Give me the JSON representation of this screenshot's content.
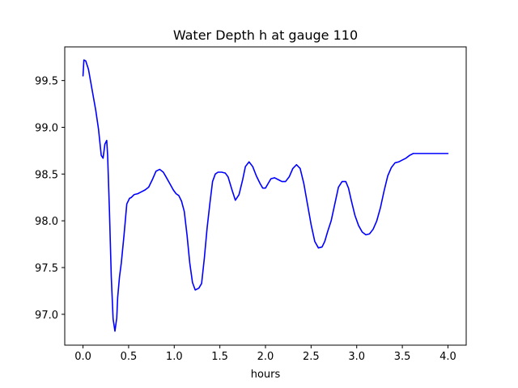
{
  "chart_data": {
    "type": "line",
    "title": "Water Depth h at gauge 110",
    "xlabel": "hours",
    "ylabel": "",
    "xlim": [
      -0.2,
      4.2
    ],
    "ylim": [
      96.67,
      99.86
    ],
    "xticks": [
      0.0,
      0.5,
      1.0,
      1.5,
      2.0,
      2.5,
      3.0,
      3.5,
      4.0
    ],
    "xtick_labels": [
      "0.0",
      "0.5",
      "1.0",
      "1.5",
      "2.0",
      "2.5",
      "3.0",
      "3.5",
      "4.0"
    ],
    "yticks": [
      97.0,
      97.5,
      98.0,
      98.5,
      99.0,
      99.5
    ],
    "ytick_labels": [
      "97.0",
      "97.5",
      "98.0",
      "98.5",
      "99.0",
      "99.5"
    ],
    "grid": false,
    "colors": {
      "line": "#0000ff",
      "axes": "#000000",
      "background": "#ffffff"
    },
    "series": [
      {
        "x": [
          0.0,
          0.01,
          0.03,
          0.06,
          0.1,
          0.14,
          0.17,
          0.2,
          0.22,
          0.24,
          0.26,
          0.27,
          0.29,
          0.31,
          0.33,
          0.35,
          0.37,
          0.38,
          0.4,
          0.42,
          0.45,
          0.48,
          0.51,
          0.53,
          0.56,
          0.6,
          0.64,
          0.68,
          0.72,
          0.76,
          0.8,
          0.84,
          0.88,
          0.91,
          0.95,
          0.99,
          1.02,
          1.05,
          1.08,
          1.11,
          1.14,
          1.17,
          1.2,
          1.23,
          1.27,
          1.3,
          1.33,
          1.36,
          1.39,
          1.42,
          1.45,
          1.48,
          1.52,
          1.56,
          1.59,
          1.63,
          1.67,
          1.71,
          1.75,
          1.78,
          1.82,
          1.86,
          1.9,
          1.94,
          1.97,
          2.0,
          2.03,
          2.06,
          2.1,
          2.14,
          2.18,
          2.22,
          2.26,
          2.3,
          2.34,
          2.38,
          2.42,
          2.46,
          2.5,
          2.54,
          2.58,
          2.62,
          2.65,
          2.68,
          2.72,
          2.76,
          2.8,
          2.84,
          2.88,
          2.91,
          2.94,
          2.98,
          3.02,
          3.06,
          3.1,
          3.14,
          3.18,
          3.22,
          3.26,
          3.3,
          3.34,
          3.38,
          3.42,
          3.46,
          3.5,
          3.54,
          3.58,
          3.62,
          3.66,
          3.7,
          3.74,
          3.78,
          3.82,
          3.86,
          3.9,
          3.94,
          3.98,
          4.0
        ],
        "values": [
          99.55,
          99.72,
          99.71,
          99.62,
          99.4,
          99.18,
          98.98,
          98.7,
          98.67,
          98.82,
          98.86,
          98.7,
          98.1,
          97.4,
          96.95,
          96.82,
          96.96,
          97.18,
          97.4,
          97.55,
          97.85,
          98.18,
          98.24,
          98.25,
          98.28,
          98.29,
          98.31,
          98.33,
          98.36,
          98.44,
          98.53,
          98.55,
          98.52,
          98.47,
          98.4,
          98.33,
          98.29,
          98.27,
          98.21,
          98.1,
          97.85,
          97.55,
          97.34,
          97.26,
          97.28,
          97.33,
          97.6,
          97.92,
          98.18,
          98.42,
          98.5,
          98.52,
          98.52,
          98.51,
          98.47,
          98.34,
          98.22,
          98.28,
          98.44,
          98.58,
          98.63,
          98.58,
          98.48,
          98.4,
          98.35,
          98.35,
          98.4,
          98.45,
          98.46,
          98.44,
          98.42,
          98.42,
          98.47,
          98.56,
          98.6,
          98.56,
          98.4,
          98.18,
          97.96,
          97.78,
          97.71,
          97.72,
          97.78,
          97.88,
          98.0,
          98.18,
          98.36,
          98.42,
          98.42,
          98.35,
          98.22,
          98.06,
          97.95,
          97.88,
          97.85,
          97.86,
          97.91,
          98.0,
          98.14,
          98.32,
          98.48,
          98.57,
          98.62,
          98.63,
          98.65,
          98.67,
          98.7,
          98.72,
          98.72,
          98.72,
          98.72,
          98.72,
          98.72,
          98.72,
          98.72,
          98.72,
          98.72,
          98.72
        ]
      }
    ]
  }
}
